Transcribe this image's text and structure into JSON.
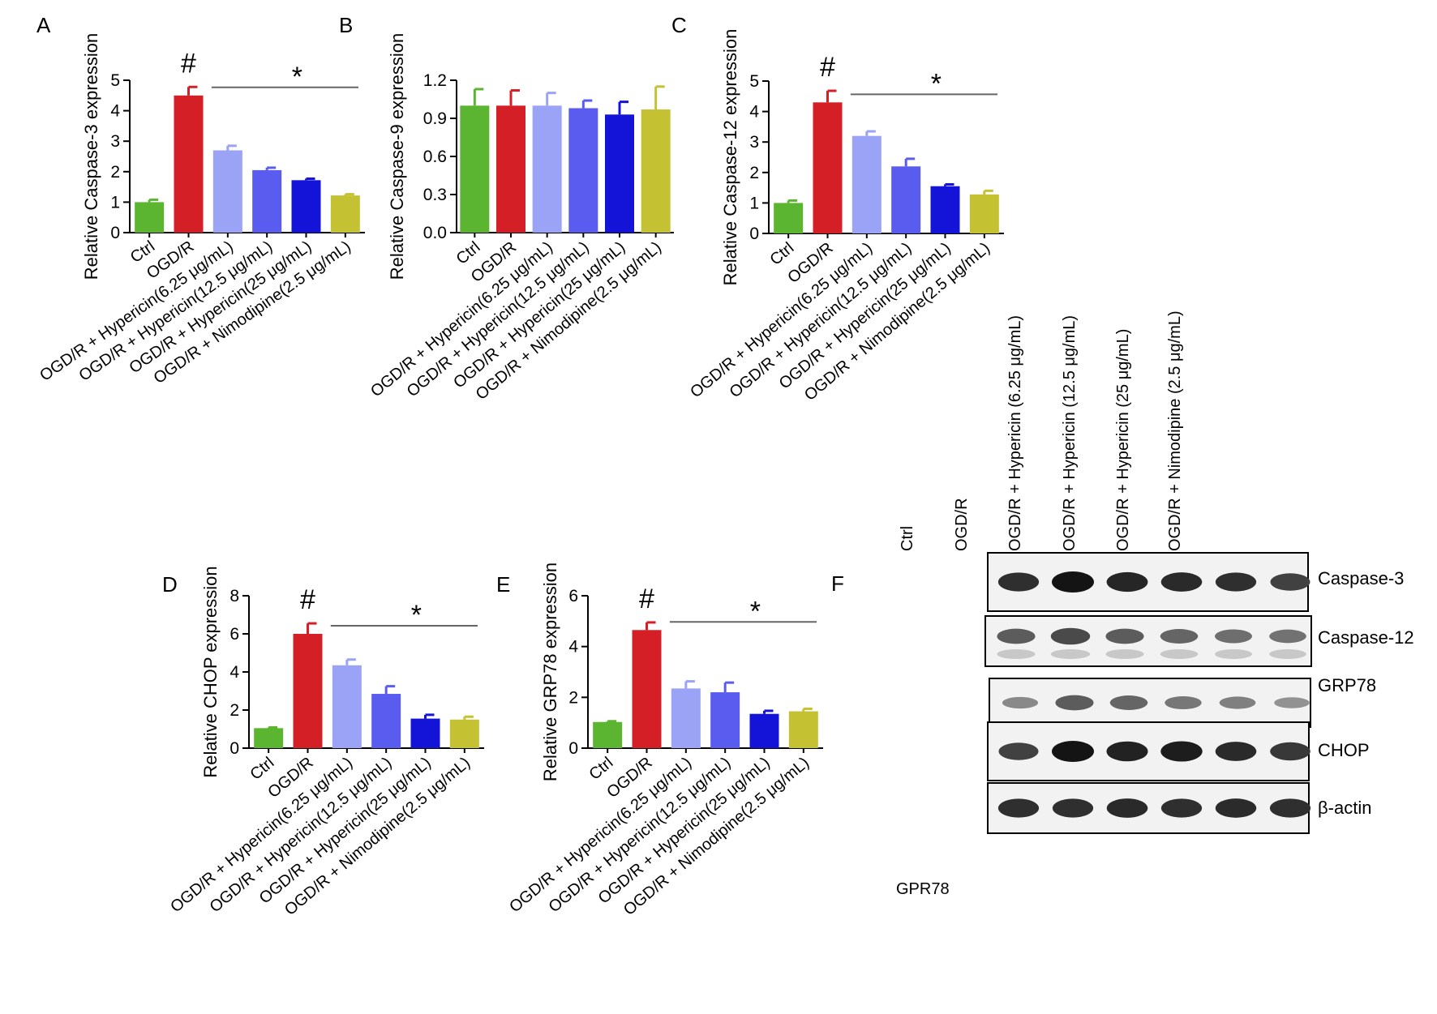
{
  "chart_data": [
    {
      "panel": "A",
      "type": "bar",
      "ylabel": "Relative Caspase-3 expression",
      "ylim": [
        0,
        5
      ],
      "yticks": [
        0,
        1,
        2,
        3,
        4,
        5
      ],
      "categories": [
        "Ctrl",
        "OGD/R",
        "OGD/R + Hypericin(6.25 μg/mL)",
        "OGD/R + Hypericin(12.5 μg/mL)",
        "OGD/R + Hypericin(25 μg/mL)",
        "OGD/R + Nimodipine(2.5 μg/mL)"
      ],
      "values": [
        1.0,
        4.5,
        2.7,
        2.05,
        1.72,
        1.22
      ],
      "errors": [
        0.08,
        0.28,
        0.15,
        0.08,
        0.05,
        0.04
      ],
      "colors": [
        "#5cb531",
        "#d41f26",
        "#9aa3f5",
        "#5a5cf0",
        "#1414d8",
        "#c4c233"
      ],
      "annotations": {
        "hash": "#",
        "star": "*",
        "line_from_category": 2
      }
    },
    {
      "panel": "B",
      "type": "bar",
      "ylabel": "Relative Caspase-9 expression",
      "ylim": [
        0,
        1.2
      ],
      "yticks": [
        "0.0",
        "0.3",
        "0.6",
        "0.9",
        "1.2"
      ],
      "categories": [
        "Ctrl",
        "OGD/R",
        "OGD/R + Hypericin(6.25 μg/mL)",
        "OGD/R + Hypericin(12.5 μg/mL)",
        "OGD/R + Hypericin(25 μg/mL)",
        "OGD/R + Nimodipine(2.5 μg/mL)"
      ],
      "values": [
        1.0,
        1.0,
        1.0,
        0.98,
        0.93,
        0.97
      ],
      "errors": [
        0.13,
        0.12,
        0.1,
        0.06,
        0.1,
        0.18
      ],
      "colors": [
        "#5cb531",
        "#d41f26",
        "#9aa3f5",
        "#5a5cf0",
        "#1414d8",
        "#c4c233"
      ],
      "annotations": null
    },
    {
      "panel": "C",
      "type": "bar",
      "ylabel": "Relative Caspase-12 expression",
      "ylim": [
        0,
        5
      ],
      "yticks": [
        0,
        1,
        2,
        3,
        4,
        5
      ],
      "categories": [
        "Ctrl",
        "OGD/R",
        "OGD/R + Hypericin(6.25 μg/mL)",
        "OGD/R + Hypericin(12.5 μg/mL)",
        "OGD/R + Hypericin(25 μg/mL)",
        "OGD/R + Nimodipine(2.5 μg/mL)"
      ],
      "values": [
        1.0,
        4.3,
        3.2,
        2.2,
        1.55,
        1.28
      ],
      "errors": [
        0.08,
        0.38,
        0.15,
        0.25,
        0.06,
        0.12
      ],
      "colors": [
        "#5cb531",
        "#d41f26",
        "#9aa3f5",
        "#5a5cf0",
        "#1414d8",
        "#c4c233"
      ],
      "annotations": {
        "hash": "#",
        "star": "*",
        "line_from_category": 2
      }
    },
    {
      "panel": "D",
      "type": "bar",
      "ylabel": "Relative CHOP expression",
      "ylim": [
        0,
        8
      ],
      "yticks": [
        0,
        2,
        4,
        6,
        8
      ],
      "categories": [
        "Ctrl",
        "OGD/R",
        "OGD/R + Hypericin(6.25 μg/mL)",
        "OGD/R + Hypericin(12.5 μg/mL)",
        "OGD/R + Hypericin(25 μg/mL)",
        "OGD/R + Nimodipine(2.5 μg/mL)"
      ],
      "values": [
        1.05,
        6.0,
        4.35,
        2.85,
        1.55,
        1.5
      ],
      "errors": [
        0.04,
        0.55,
        0.3,
        0.4,
        0.2,
        0.15
      ],
      "colors": [
        "#5cb531",
        "#d41f26",
        "#9aa3f5",
        "#5a5cf0",
        "#1414d8",
        "#c4c233"
      ],
      "annotations": {
        "hash": "#",
        "star": "*",
        "line_from_category": 2
      }
    },
    {
      "panel": "E",
      "type": "bar",
      "ylabel": "Relative GRP78 expression",
      "ylim": [
        0,
        6
      ],
      "yticks": [
        0,
        2,
        4,
        6
      ],
      "categories": [
        "Ctrl",
        "OGD/R",
        "OGD/R + Hypericin(6.25 μg/mL)",
        "OGD/R + Hypericin(12.5 μg/mL)",
        "OGD/R + Hypericin(25 μg/mL)",
        "OGD/R + Nimodipine(2.5 μg/mL)"
      ],
      "values": [
        1.03,
        4.65,
        2.35,
        2.2,
        1.35,
        1.45
      ],
      "errors": [
        0.03,
        0.3,
        0.28,
        0.38,
        0.12,
        0.1
      ],
      "colors": [
        "#5cb531",
        "#d41f26",
        "#9aa3f5",
        "#5a5cf0",
        "#1414d8",
        "#c4c233"
      ],
      "annotations": {
        "hash": "#",
        "star": "*",
        "line_from_category": 2
      }
    }
  ],
  "blot": {
    "panel": "F",
    "lanes": [
      "Ctrl",
      "OGD/R",
      "OGD/R + Hypericin (6.25 μg/mL)",
      "OGD/R + Hypericin (12.5 μg/mL)",
      "OGD/R + Hypericin (25 μg/mL)",
      "OGD/R + Nimodipine (2.5 μg/mL)"
    ],
    "rows": [
      {
        "label": "Caspase-3",
        "intensity": [
          0.85,
          1.0,
          0.9,
          0.88,
          0.85,
          0.75
        ]
      },
      {
        "label": "Caspase-12",
        "intensity": [
          0.6,
          0.7,
          0.6,
          0.55,
          0.5,
          0.48
        ]
      },
      {
        "label": "GRP78",
        "intensity": [
          0.35,
          0.6,
          0.55,
          0.45,
          0.4,
          0.3
        ]
      },
      {
        "label": "CHOP",
        "intensity": [
          0.75,
          1.0,
          0.92,
          0.95,
          0.88,
          0.8
        ]
      },
      {
        "label": "β-actin",
        "intensity": [
          0.85,
          0.85,
          0.88,
          0.85,
          0.87,
          0.85
        ]
      }
    ]
  },
  "caption": "GPR78"
}
